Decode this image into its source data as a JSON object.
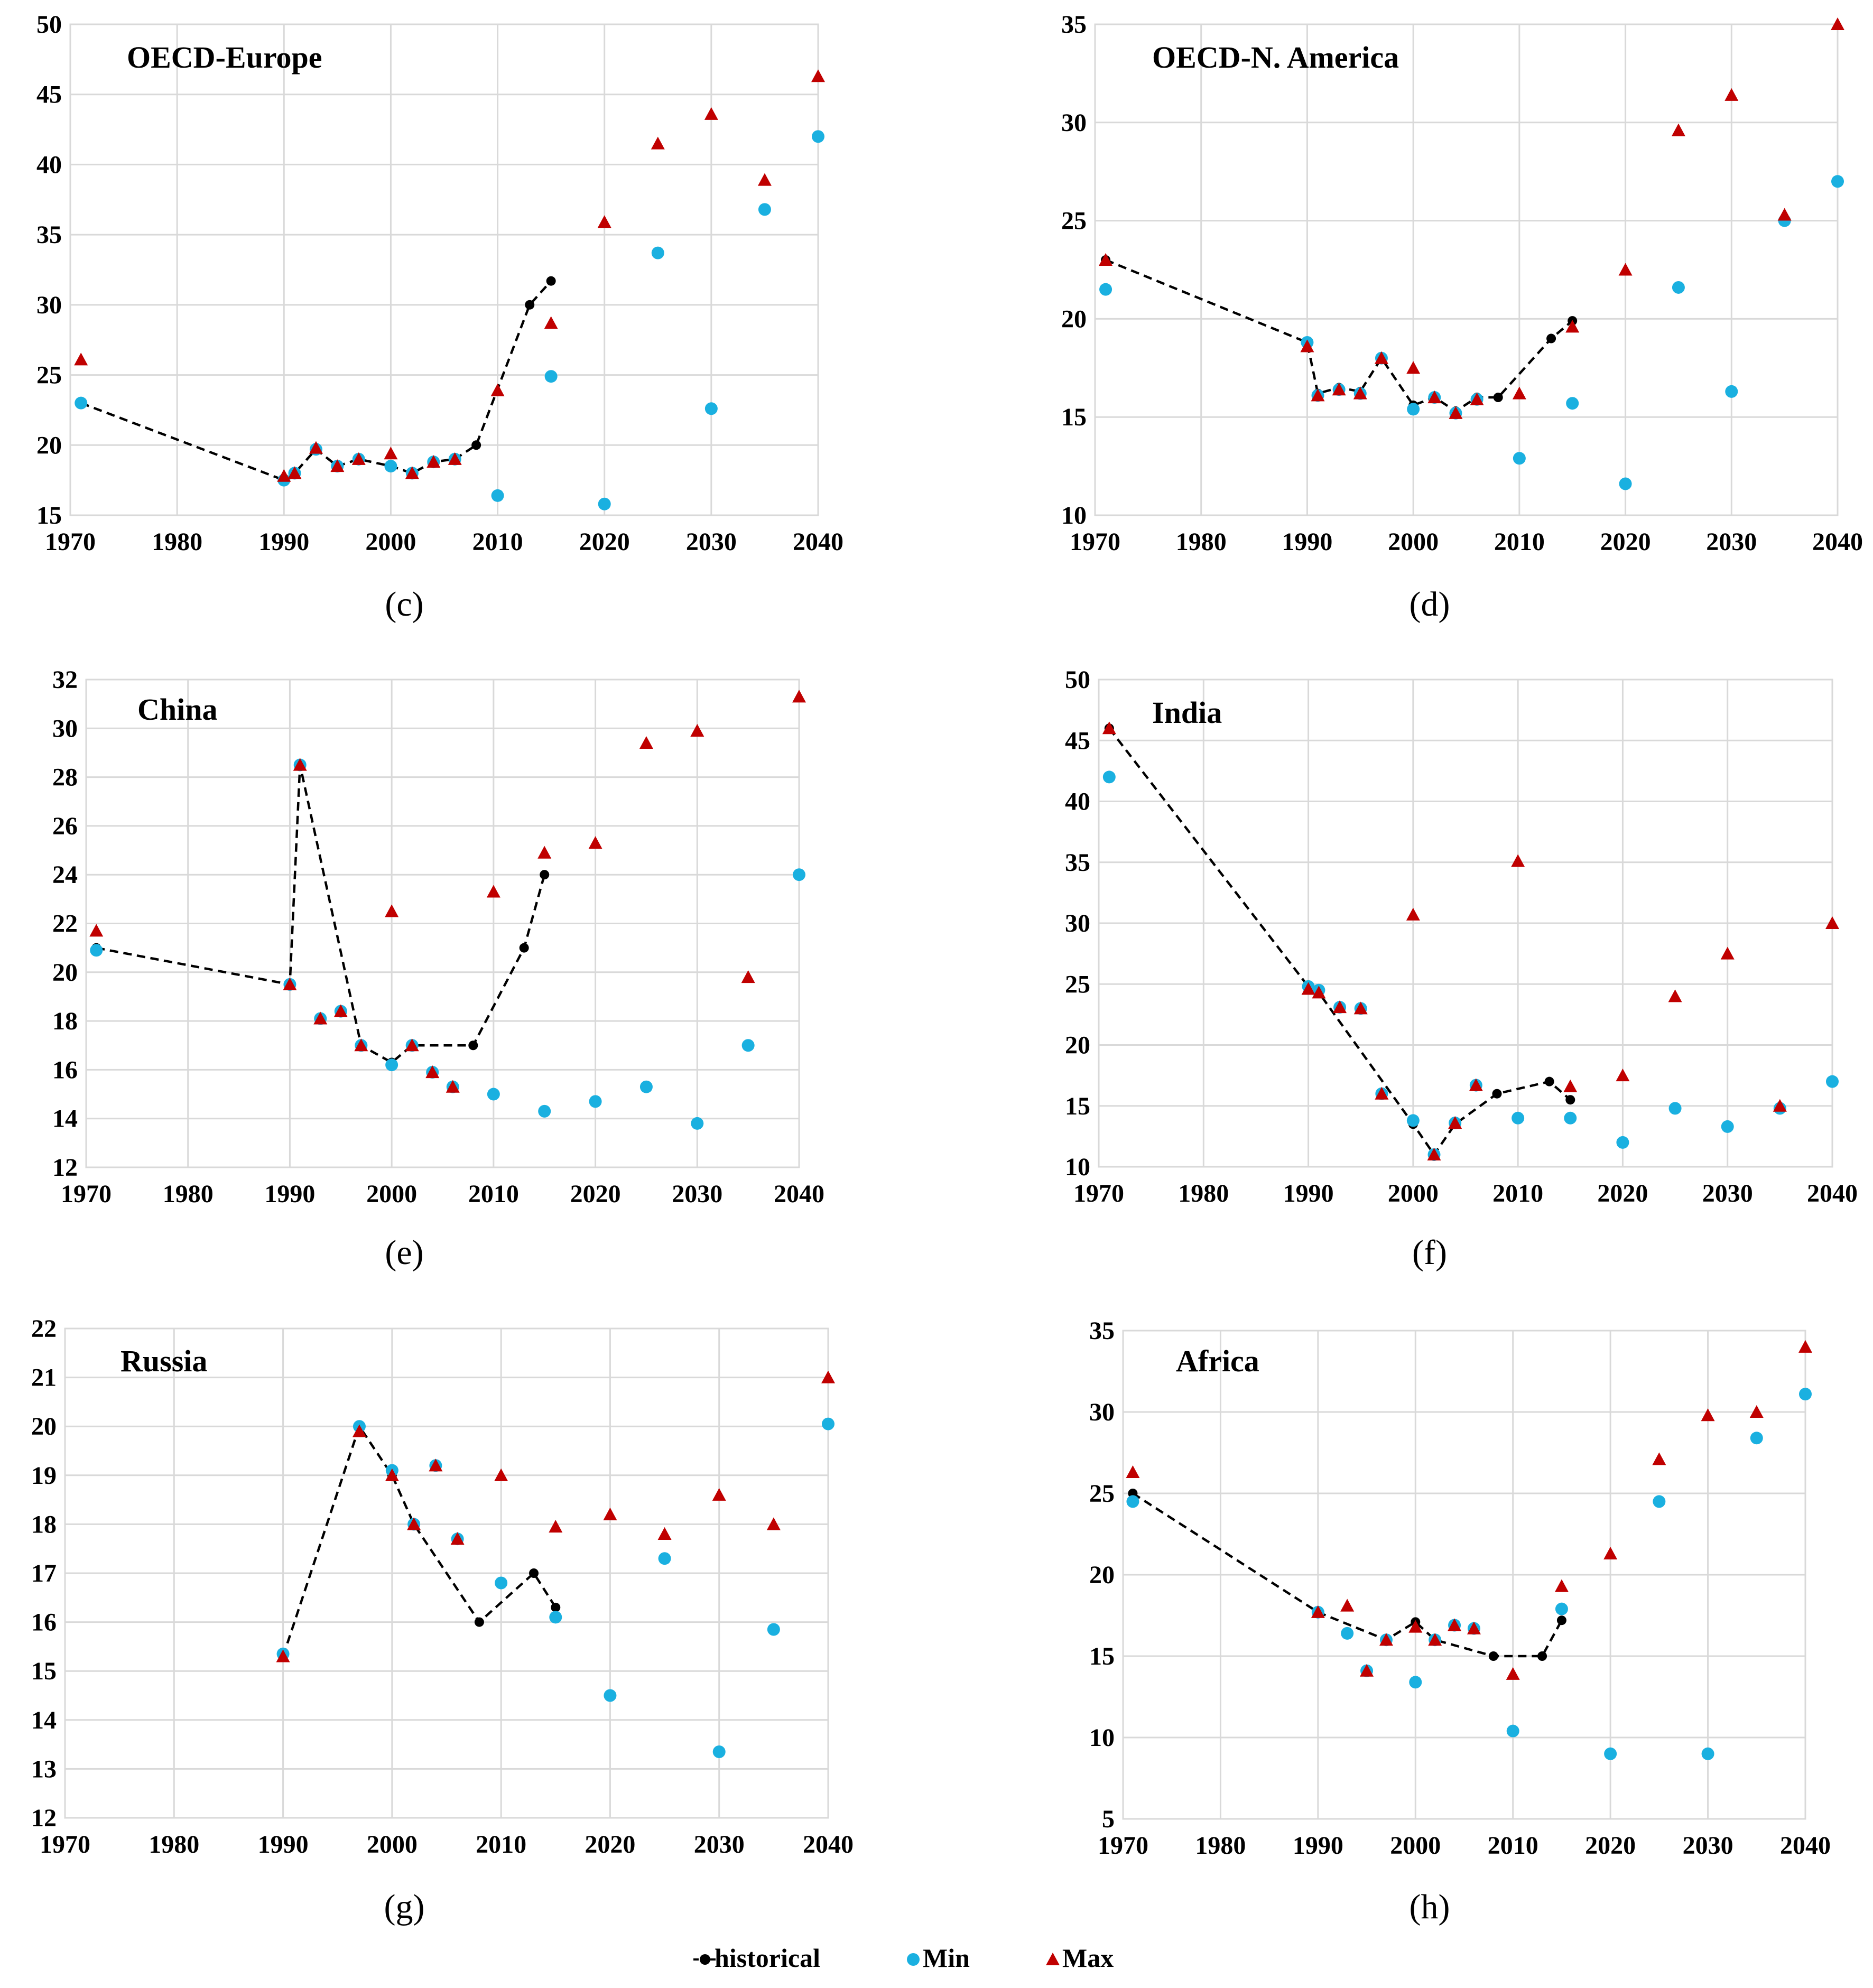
{
  "chart_data": [
    {
      "type": "scatter",
      "panel_label": "(c)",
      "title": "OECD-Europe",
      "xlim": [
        1970,
        2040
      ],
      "ylim": [
        15,
        50
      ],
      "xticks": [
        1970,
        1980,
        1990,
        2000,
        2010,
        2020,
        2030,
        2040
      ],
      "yticks": [
        15,
        20,
        25,
        30,
        35,
        40,
        45,
        50
      ],
      "series": [
        {
          "name": "historical",
          "x": [
            1971,
            1990,
            1991,
            1993,
            1995,
            1997,
            2000,
            2002,
            2004,
            2006,
            2008,
            2013,
            2015
          ],
          "y": [
            23.0,
            17.5,
            18.0,
            19.7,
            18.5,
            19.0,
            18.5,
            18.0,
            18.8,
            19.0,
            20.0,
            30.0,
            31.7
          ]
        },
        {
          "name": "Min",
          "x": [
            1971,
            1990,
            1991,
            1993,
            1995,
            1997,
            2000,
            2002,
            2004,
            2006,
            2010,
            2015,
            2020,
            2025,
            2030,
            2035,
            2040
          ],
          "y": [
            23.0,
            17.5,
            18.0,
            19.7,
            18.5,
            19.0,
            18.5,
            18.0,
            18.8,
            19.0,
            16.4,
            24.9,
            15.8,
            33.7,
            22.6,
            36.8,
            42.0
          ]
        },
        {
          "name": "Max",
          "x": [
            1971,
            1990,
            1991,
            1993,
            1995,
            1997,
            2000,
            2002,
            2004,
            2006,
            2010,
            2015,
            2020,
            2025,
            2030,
            2035,
            2040
          ],
          "y": [
            26.1,
            17.8,
            18.0,
            19.8,
            18.5,
            19.0,
            19.4,
            18.0,
            18.8,
            19.0,
            23.9,
            28.7,
            35.9,
            41.5,
            43.6,
            38.9,
            46.3
          ]
        }
      ]
    },
    {
      "type": "scatter",
      "panel_label": "(d)",
      "title": "OECD-N. America",
      "xlim": [
        1970,
        2040
      ],
      "ylim": [
        10,
        35
      ],
      "xticks": [
        1970,
        1980,
        1990,
        2000,
        2010,
        2020,
        2030,
        2040
      ],
      "yticks": [
        10,
        15,
        20,
        25,
        30,
        35
      ],
      "series": [
        {
          "name": "historical",
          "x": [
            1971,
            1990,
            1991,
            1993,
            1995,
            1997,
            2000,
            2002,
            2004,
            2006,
            2008,
            2013,
            2015
          ],
          "y": [
            23.0,
            18.8,
            16.2,
            16.5,
            16.3,
            18.0,
            15.6,
            16.0,
            15.3,
            16.0,
            16.0,
            19.0,
            19.9
          ]
        },
        {
          "name": "Min",
          "x": [
            1971,
            1990,
            1991,
            1993,
            1995,
            1997,
            2000,
            2002,
            2004,
            2006,
            2010,
            2015,
            2020,
            2025,
            2030,
            2035,
            2040
          ],
          "y": [
            21.5,
            18.8,
            16.1,
            16.4,
            16.2,
            18.0,
            15.4,
            16.0,
            15.2,
            15.9,
            12.9,
            15.7,
            11.6,
            21.6,
            16.3,
            25.0,
            27.0
          ]
        },
        {
          "name": "Max",
          "x": [
            1971,
            1990,
            1991,
            1993,
            1995,
            1997,
            2000,
            2002,
            2004,
            2006,
            2010,
            2015,
            2020,
            2025,
            2030,
            2035,
            2040
          ],
          "y": [
            23.0,
            18.6,
            16.1,
            16.4,
            16.2,
            18.0,
            17.5,
            16.0,
            15.2,
            15.9,
            16.2,
            19.6,
            22.5,
            29.6,
            31.4,
            25.3,
            35.0
          ]
        }
      ]
    },
    {
      "type": "scatter",
      "panel_label": "(e)",
      "title": "China",
      "xlim": [
        1970,
        2040
      ],
      "ylim": [
        12,
        32
      ],
      "xticks": [
        1970,
        1980,
        1990,
        2000,
        2010,
        2020,
        2030,
        2040
      ],
      "yticks": [
        12,
        14,
        16,
        18,
        20,
        22,
        24,
        26,
        28,
        30,
        32
      ],
      "series": [
        {
          "name": "historical",
          "x": [
            1971,
            1990,
            1991,
            1997,
            2000,
            2002,
            2008,
            2013,
            2015
          ],
          "y": [
            21.0,
            19.5,
            28.5,
            17.0,
            16.3,
            17.0,
            17.0,
            21.0,
            24.0
          ]
        },
        {
          "name": "Min",
          "x": [
            1971,
            1990,
            1991,
            1993,
            1995,
            1997,
            2000,
            2002,
            2004,
            2006,
            2010,
            2015,
            2020,
            2025,
            2030,
            2035,
            2040
          ],
          "y": [
            20.9,
            19.5,
            28.5,
            18.1,
            18.4,
            17.0,
            16.2,
            17.0,
            15.9,
            15.3,
            15.0,
            14.3,
            14.7,
            15.3,
            13.8,
            17.0,
            24.0
          ]
        },
        {
          "name": "Max",
          "x": [
            1971,
            1990,
            1991,
            1993,
            1995,
            1997,
            2000,
            2002,
            2004,
            2006,
            2010,
            2015,
            2020,
            2025,
            2030,
            2035,
            2040
          ],
          "y": [
            21.7,
            19.5,
            28.5,
            18.1,
            18.4,
            17.0,
            22.5,
            17.0,
            15.9,
            15.3,
            23.3,
            24.9,
            25.3,
            29.4,
            29.9,
            19.8,
            31.3
          ]
        }
      ]
    },
    {
      "type": "scatter",
      "panel_label": "(f)",
      "title": "India",
      "xlim": [
        1970,
        2040
      ],
      "ylim": [
        10,
        50
      ],
      "xticks": [
        1970,
        1980,
        1990,
        2000,
        2010,
        2020,
        2030,
        2040
      ],
      "yticks": [
        10,
        15,
        20,
        25,
        30,
        35,
        40,
        45,
        50
      ],
      "series": [
        {
          "name": "historical",
          "x": [
            1971,
            1990,
            1991,
            2000,
            2002,
            2004,
            2008,
            2013,
            2015
          ],
          "y": [
            46.0,
            24.8,
            24.3,
            13.5,
            11.0,
            13.5,
            16.0,
            17.0,
            15.5
          ]
        },
        {
          "name": "Min",
          "x": [
            1971,
            1990,
            1991,
            1993,
            1995,
            1997,
            2000,
            2002,
            2004,
            2006,
            2010,
            2015,
            2020,
            2025,
            2030,
            2035,
            2040
          ],
          "y": [
            42.0,
            24.8,
            24.5,
            23.1,
            23.0,
            16.0,
            13.8,
            11.0,
            13.6,
            16.7,
            14.0,
            14.0,
            12.0,
            14.8,
            13.3,
            14.8,
            17.0
          ]
        },
        {
          "name": "Max",
          "x": [
            1971,
            1990,
            1991,
            1993,
            1995,
            1997,
            2000,
            2002,
            2004,
            2006,
            2010,
            2015,
            2020,
            2025,
            2030,
            2035,
            2040
          ],
          "y": [
            46.0,
            24.6,
            24.3,
            23.1,
            23.0,
            16.0,
            30.7,
            11.0,
            13.6,
            16.7,
            35.1,
            16.6,
            17.5,
            24.0,
            27.5,
            15.0,
            30.0
          ]
        }
      ]
    },
    {
      "type": "scatter",
      "panel_label": "(g)",
      "title": "Russia",
      "xlim": [
        1970,
        2040
      ],
      "ylim": [
        12,
        22
      ],
      "xticks": [
        1970,
        1980,
        1990,
        2000,
        2010,
        2020,
        2030,
        2040
      ],
      "yticks": [
        12,
        13,
        14,
        15,
        16,
        17,
        18,
        19,
        20,
        21,
        22
      ],
      "series": [
        {
          "name": "historical",
          "x": [
            1990,
            1997,
            2000,
            2002,
            2008,
            2013,
            2015
          ],
          "y": [
            15.3,
            20.0,
            19.0,
            18.0,
            16.0,
            17.0,
            16.3
          ]
        },
        {
          "name": "Min",
          "x": [
            1990,
            1997,
            2000,
            2002,
            2004,
            2006,
            2010,
            2015,
            2020,
            2025,
            2030,
            2035,
            2040
          ],
          "y": [
            15.35,
            20.0,
            19.1,
            18.0,
            19.2,
            17.7,
            16.8,
            16.1,
            14.5,
            17.3,
            13.35,
            15.85,
            20.05
          ]
        },
        {
          "name": "Max",
          "x": [
            1990,
            1997,
            2000,
            2002,
            2004,
            2006,
            2010,
            2015,
            2020,
            2025,
            2030,
            2035,
            2040
          ],
          "y": [
            15.3,
            19.9,
            19.0,
            18.0,
            19.2,
            17.7,
            19.0,
            17.95,
            18.2,
            17.8,
            18.6,
            18.0,
            21.0
          ]
        }
      ]
    },
    {
      "type": "scatter",
      "panel_label": "(h)",
      "title": "Africa",
      "xlim": [
        1970,
        2040
      ],
      "ylim": [
        5,
        35
      ],
      "xticks": [
        1970,
        1980,
        1990,
        2000,
        2010,
        2020,
        2030,
        2040
      ],
      "yticks": [
        5,
        10,
        15,
        20,
        25,
        30,
        35
      ],
      "series": [
        {
          "name": "historical",
          "x": [
            1971,
            1990,
            1997,
            2000,
            2002,
            2008,
            2013,
            2015
          ],
          "y": [
            25.0,
            17.7,
            16.0,
            17.1,
            16.0,
            15.0,
            15.0,
            17.2
          ]
        },
        {
          "name": "Min",
          "x": [
            1971,
            1990,
            1993,
            1995,
            1997,
            2000,
            2002,
            2004,
            2006,
            2010,
            2015,
            2020,
            2025,
            2030,
            2035,
            2040
          ],
          "y": [
            24.5,
            17.7,
            16.4,
            14.1,
            16.0,
            13.4,
            16.0,
            16.9,
            16.7,
            10.4,
            17.9,
            9.0,
            24.5,
            9.0,
            28.4,
            31.1
          ]
        },
        {
          "name": "Max",
          "x": [
            1971,
            1990,
            1993,
            1995,
            1997,
            2000,
            2002,
            2004,
            2006,
            2010,
            2015,
            2020,
            2025,
            2030,
            2035,
            2040
          ],
          "y": [
            26.3,
            17.7,
            18.1,
            14.1,
            16.0,
            16.8,
            16.0,
            16.9,
            16.7,
            13.9,
            19.3,
            21.3,
            27.1,
            29.8,
            30.0,
            34.0
          ]
        }
      ]
    }
  ],
  "legend": {
    "position": "bottom-center",
    "items": [
      {
        "name": "historical",
        "label": "historical",
        "marker": "dot-with-dashed-line",
        "color": "#000000"
      },
      {
        "name": "Min",
        "label": "Min",
        "marker": "circle",
        "color": "#1ab0e0"
      },
      {
        "name": "Max",
        "label": "Max",
        "marker": "triangle",
        "color": "#c00000"
      }
    ]
  },
  "colors": {
    "historical": "#000000",
    "min": "#1ab0e0",
    "max": "#c00000",
    "grid": "#d9d9d9"
  }
}
